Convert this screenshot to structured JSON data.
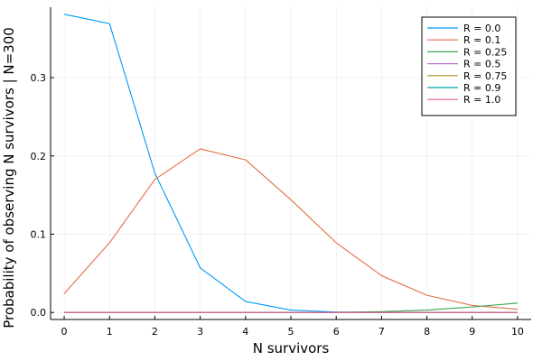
{
  "chart_data": {
    "type": "line",
    "xlabel": "N survivors",
    "ylabel": "Probability of observing N survivors | N=300",
    "xlim": [
      -0.3,
      10.3
    ],
    "ylim": [
      -0.009,
      0.39
    ],
    "x": [
      0,
      1,
      2,
      3,
      4,
      5,
      6,
      7,
      8,
      9,
      10
    ],
    "xticks": [
      "0",
      "1",
      "2",
      "3",
      "4",
      "5",
      "6",
      "7",
      "8",
      "9",
      "10"
    ],
    "yticks": [
      {
        "value": 0.0,
        "label": "0.0"
      },
      {
        "value": 0.1,
        "label": "0.1"
      },
      {
        "value": 0.2,
        "label": "0.2"
      },
      {
        "value": 0.3,
        "label": "0.3"
      }
    ],
    "grid": true,
    "legend_position": "top-right",
    "series": [
      {
        "name": "R = 0.0",
        "color": "#009AFA",
        "values": [
          0.381,
          0.369,
          0.178,
          0.057,
          0.014,
          0.003,
          0.0005,
          0.0001,
          0.0,
          0.0,
          0.0
        ]
      },
      {
        "name": "R = 0.1",
        "color": "#E36F47",
        "values": [
          0.024,
          0.089,
          0.17,
          0.209,
          0.195,
          0.144,
          0.089,
          0.047,
          0.022,
          0.009,
          0.004
        ]
      },
      {
        "name": "R = 0.25",
        "color": "#3EA44E",
        "values": [
          0.0,
          0.0,
          0.0,
          0.0,
          0.0,
          0.0,
          0.0002,
          0.001,
          0.003,
          0.007,
          0.012
        ]
      },
      {
        "name": "R = 0.5",
        "color": "#C371D2",
        "values": [
          0,
          0,
          0,
          0,
          0,
          0,
          0,
          0,
          0,
          0,
          0
        ]
      },
      {
        "name": "R = 0.75",
        "color": "#AC8D18",
        "values": [
          0,
          0,
          0,
          0,
          0,
          0,
          0,
          0,
          0,
          0,
          0
        ]
      },
      {
        "name": "R = 0.9",
        "color": "#00A9AD",
        "values": [
          0,
          0,
          0,
          0,
          0,
          0,
          0,
          0,
          0,
          0,
          0
        ]
      },
      {
        "name": "R = 1.0",
        "color": "#ED5E93",
        "values": [
          0,
          0,
          0,
          0,
          0,
          0,
          0,
          0,
          0,
          0,
          0
        ]
      }
    ]
  }
}
